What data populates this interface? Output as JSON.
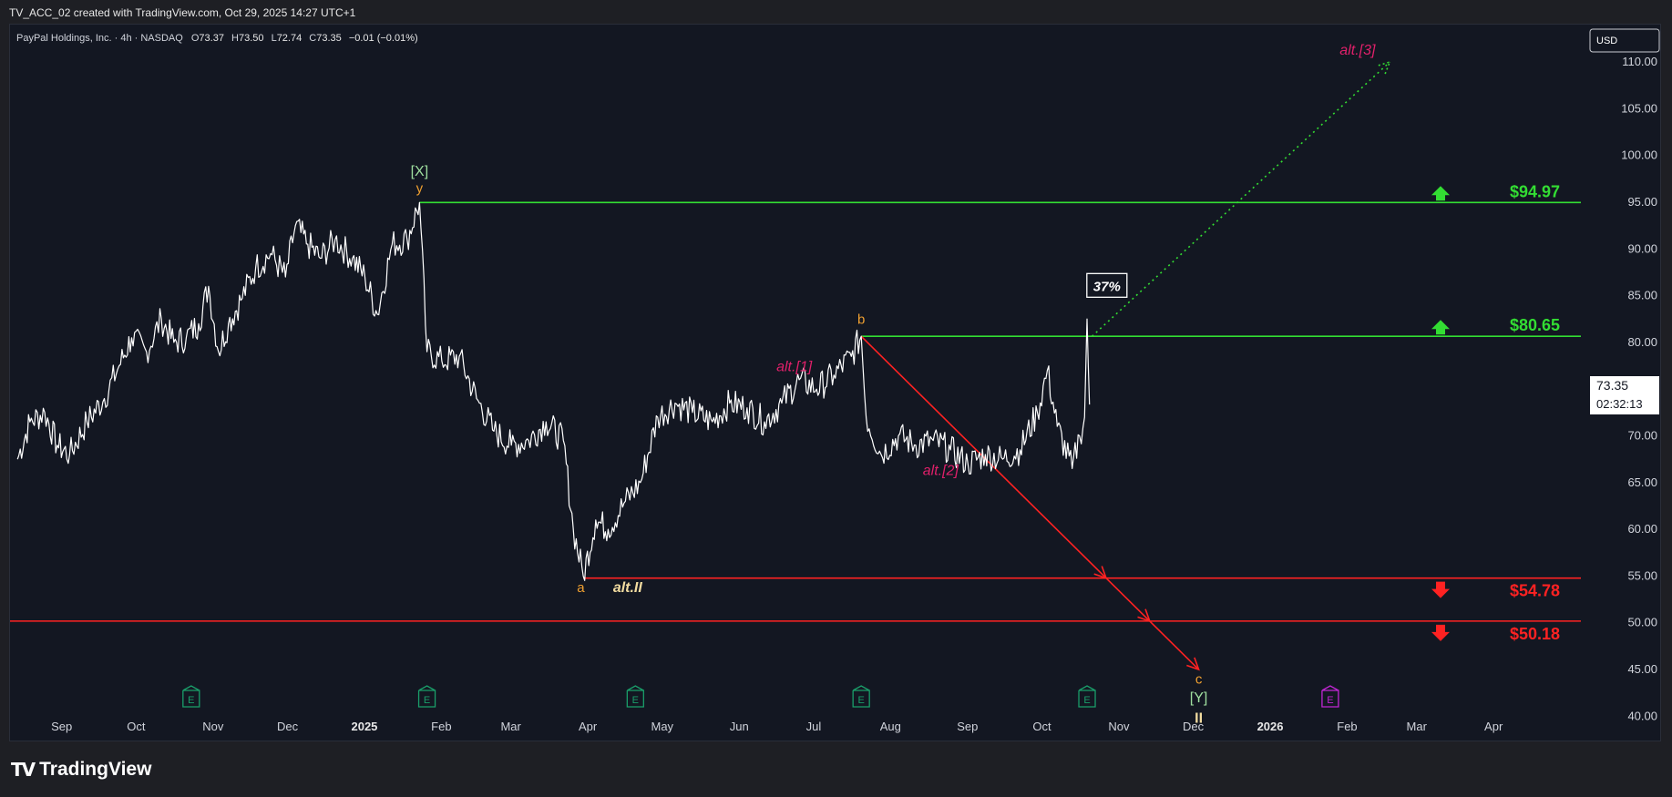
{
  "header": {
    "caption": "TV_ACC_02 created with TradingView.com, Oct 29, 2025 14:27 UTC+1"
  },
  "legend": {
    "symbol": "PayPal Holdings, Inc. · 4h · NASDAQ",
    "o_label": "O",
    "o_value": "73.37",
    "h_label": "H",
    "h_value": "73.50",
    "l_label": "L",
    "l_value": "72.74",
    "c_label": "C",
    "c_value": "73.35",
    "change": "−0.01 (−0.01%)"
  },
  "currency_button": "USD",
  "price_tag": {
    "price": "73.35",
    "countdown": "02:32:13"
  },
  "brand": "TradingView",
  "colors": {
    "background": "#131722",
    "price_line": "#ffffff",
    "resistance": "#33dd33",
    "support": "#ff2222",
    "wave_orange": "#f0a030",
    "wave_pink": "#e0206a",
    "wave_green": "#9fdf9f",
    "wave_yellow": "#f2dca0",
    "earnings_green": "#1a9e6a",
    "earnings_magenta": "#c026d3"
  },
  "chart_data": {
    "type": "line",
    "ylim": [
      37.5,
      114.0
    ],
    "yticks": [
      110.0,
      105.0,
      100.0,
      95.0,
      90.0,
      85.0,
      80.0,
      75.0,
      70.0,
      65.0,
      60.0,
      55.0,
      50.0,
      45.0,
      40.0
    ],
    "xticks": [
      {
        "label": "Sep",
        "x": "2024-09-01"
      },
      {
        "label": "Oct",
        "x": "2024-10-01"
      },
      {
        "label": "Nov",
        "x": "2024-11-01"
      },
      {
        "label": "Dec",
        "x": "2024-12-01"
      },
      {
        "label": "2025",
        "x": "2025-01-01",
        "bold": true
      },
      {
        "label": "Feb",
        "x": "2025-02-01"
      },
      {
        "label": "Mar",
        "x": "2025-03-01"
      },
      {
        "label": "Apr",
        "x": "2025-04-01"
      },
      {
        "label": "May",
        "x": "2025-05-01"
      },
      {
        "label": "Jun",
        "x": "2025-06-01"
      },
      {
        "label": "Jul",
        "x": "2025-07-01"
      },
      {
        "label": "Aug",
        "x": "2025-08-01"
      },
      {
        "label": "Sep",
        "x": "2025-09-01"
      },
      {
        "label": "Oct",
        "x": "2025-10-01"
      },
      {
        "label": "Nov",
        "x": "2025-11-01"
      },
      {
        "label": "Dec",
        "x": "2025-12-01"
      },
      {
        "label": "2026",
        "x": "2026-01-01",
        "bold": true
      },
      {
        "label": "Feb",
        "x": "2026-02-01"
      },
      {
        "label": "Mar",
        "x": "2026-03-01"
      },
      {
        "label": "Apr",
        "x": "2026-04-01"
      }
    ],
    "series": [
      {
        "values": [
          [
            "2024-08-23",
            67.5
          ],
          [
            "2024-08-28",
            71.5
          ],
          [
            "2024-09-03",
            72.5
          ],
          [
            "2024-09-08",
            69.0
          ],
          [
            "2024-09-13",
            68.0
          ],
          [
            "2024-09-20",
            71.5
          ],
          [
            "2024-09-27",
            74.0
          ],
          [
            "2024-10-03",
            77.5
          ],
          [
            "2024-10-08",
            80.5
          ],
          [
            "2024-10-14",
            79.0
          ],
          [
            "2024-10-20",
            82.5
          ],
          [
            "2024-10-25",
            80.0
          ],
          [
            "2024-10-30",
            80.5
          ],
          [
            "2024-11-04",
            82.0
          ],
          [
            "2024-11-08",
            86.0
          ],
          [
            "2024-11-12",
            79.0
          ],
          [
            "2024-11-16",
            82.0
          ],
          [
            "2024-11-21",
            84.5
          ],
          [
            "2024-11-27",
            88.0
          ],
          [
            "2024-12-03",
            89.5
          ],
          [
            "2024-12-09",
            87.0
          ],
          [
            "2024-12-13",
            92.5
          ],
          [
            "2024-12-18",
            90.5
          ],
          [
            "2024-12-23",
            89.0
          ],
          [
            "2024-12-29",
            91.0
          ],
          [
            "2025-01-05",
            89.0
          ],
          [
            "2025-01-10",
            87.0
          ],
          [
            "2025-01-15",
            83.0
          ],
          [
            "2025-01-21",
            90.5
          ],
          [
            "2025-01-27",
            91.0
          ],
          [
            "2025-02-01",
            94.97
          ],
          [
            "2025-02-04",
            79.0
          ],
          [
            "2025-02-10",
            78.0
          ],
          [
            "2025-02-17",
            78.5
          ],
          [
            "2025-02-24",
            74.0
          ],
          [
            "2025-03-03",
            70.5
          ],
          [
            "2025-03-10",
            69.0
          ],
          [
            "2025-03-17",
            69.5
          ],
          [
            "2025-03-24",
            71.5
          ],
          [
            "2025-03-31",
            69.5
          ],
          [
            "2025-04-04",
            60.0
          ],
          [
            "2025-04-08",
            55.0
          ],
          [
            "2025-04-13",
            61.0
          ],
          [
            "2025-04-18",
            60.0
          ],
          [
            "2025-04-25",
            63.0
          ],
          [
            "2025-05-01",
            65.0
          ],
          [
            "2025-05-08",
            72.0
          ],
          [
            "2025-05-15",
            73.5
          ],
          [
            "2025-05-22",
            72.5
          ],
          [
            "2025-05-30",
            71.5
          ],
          [
            "2025-06-06",
            73.5
          ],
          [
            "2025-06-13",
            73.0
          ],
          [
            "2025-06-20",
            71.5
          ],
          [
            "2025-06-27",
            73.5
          ],
          [
            "2025-07-04",
            76.0
          ],
          [
            "2025-07-11",
            75.0
          ],
          [
            "2025-07-18",
            76.5
          ],
          [
            "2025-07-25",
            78.5
          ],
          [
            "2025-07-29",
            80.65
          ],
          [
            "2025-07-31",
            72.0
          ],
          [
            "2025-08-06",
            68.0
          ],
          [
            "2025-08-13",
            70.0
          ],
          [
            "2025-08-20",
            69.0
          ],
          [
            "2025-08-27",
            69.5
          ],
          [
            "2025-09-03",
            68.5
          ],
          [
            "2025-09-10",
            67.0
          ],
          [
            "2025-09-17",
            68.0
          ],
          [
            "2025-09-24",
            67.5
          ],
          [
            "2025-10-01",
            68.5
          ],
          [
            "2025-10-08",
            72.5
          ],
          [
            "2025-10-12",
            77.0
          ],
          [
            "2025-10-16",
            71.0
          ],
          [
            "2025-10-22",
            66.5
          ],
          [
            "2025-10-25",
            70.0
          ],
          [
            "2025-10-27",
            72.0
          ],
          [
            "2025-10-28",
            82.5
          ],
          [
            "2025-10-29",
            73.35
          ]
        ]
      }
    ],
    "lines": [
      {
        "type": "horizontal",
        "value": 94.97,
        "color": "#33dd33",
        "label": "$94.97",
        "x_start": "2025-02-01",
        "arrow": "up"
      },
      {
        "type": "horizontal",
        "value": 80.65,
        "color": "#33dd33",
        "label": "$80.65",
        "x_start": "2025-07-29",
        "arrow": "up"
      },
      {
        "type": "horizontal",
        "value": 54.78,
        "color": "#ff2222",
        "label": "$54.78",
        "x_start": "2025-04-08",
        "arrow": "down"
      },
      {
        "type": "horizontal",
        "value": 50.18,
        "color": "#ff2222",
        "label": "$50.18",
        "x_start": "2024-08-20",
        "arrow": "down"
      }
    ],
    "projections": [
      {
        "style": "solid",
        "color": "#ff2222",
        "points": [
          [
            "2025-07-29",
            80.65
          ],
          [
            "2025-12-12",
            45.0
          ]
        ]
      },
      {
        "style": "dotted",
        "color": "#33dd33",
        "points": [
          [
            "2025-10-30",
            80.65
          ],
          [
            "2026-02-27",
            110.0
          ]
        ]
      }
    ],
    "annotations": [
      {
        "text": "[X]",
        "x": "2025-02-01",
        "y": 97.8,
        "color": "#9fdf9f",
        "size": 16
      },
      {
        "text": "y",
        "x": "2025-02-01",
        "y": 96.0,
        "color": "#f0a030",
        "size": 15
      },
      {
        "text": "b",
        "x": "2025-07-29",
        "y": 82.0,
        "color": "#f0a030",
        "size": 15
      },
      {
        "text": "alt.[1]",
        "x": "2025-07-02",
        "y": 76.9,
        "color": "#e0206a",
        "size": 16,
        "italic": true
      },
      {
        "text": "alt.[2]",
        "x": "2025-08-30",
        "y": 65.8,
        "color": "#e0206a",
        "size": 16,
        "italic": true
      },
      {
        "text": "alt.[3]",
        "x": "2026-02-14",
        "y": 110.8,
        "color": "#e0206a",
        "size": 16,
        "italic": true
      },
      {
        "text": "a",
        "x": "2025-04-07",
        "y": 53.3,
        "color": "#f0a030",
        "size": 15
      },
      {
        "text": "alt.II",
        "x": "2025-04-20",
        "y": 53.3,
        "color": "#f2dca0",
        "size": 16,
        "italic": true,
        "bold": true
      },
      {
        "text": "c",
        "x": "2025-12-12",
        "y": 43.5,
        "color": "#f0a030",
        "size": 15
      },
      {
        "text": "[Y]",
        "x": "2025-12-12",
        "y": 41.5,
        "color": "#9fdf9f",
        "size": 16
      },
      {
        "text": "II",
        "x": "2025-12-12",
        "y": 39.3,
        "color": "#f2dca0",
        "size": 16,
        "bold": true
      }
    ],
    "callout": {
      "text": "37%",
      "x": "2025-11-05",
      "y": 86.0
    },
    "earnings": [
      {
        "x": "2024-11-01",
        "color": "#1a9e6a"
      },
      {
        "x": "2025-02-04",
        "color": "#1a9e6a"
      },
      {
        "x": "2025-04-29",
        "color": "#1a9e6a"
      },
      {
        "x": "2025-07-29",
        "color": "#1a9e6a"
      },
      {
        "x": "2025-10-28",
        "color": "#1a9e6a"
      },
      {
        "x": "2026-02-03",
        "color": "#c026d3"
      }
    ],
    "earnings_glyph": "E"
  }
}
